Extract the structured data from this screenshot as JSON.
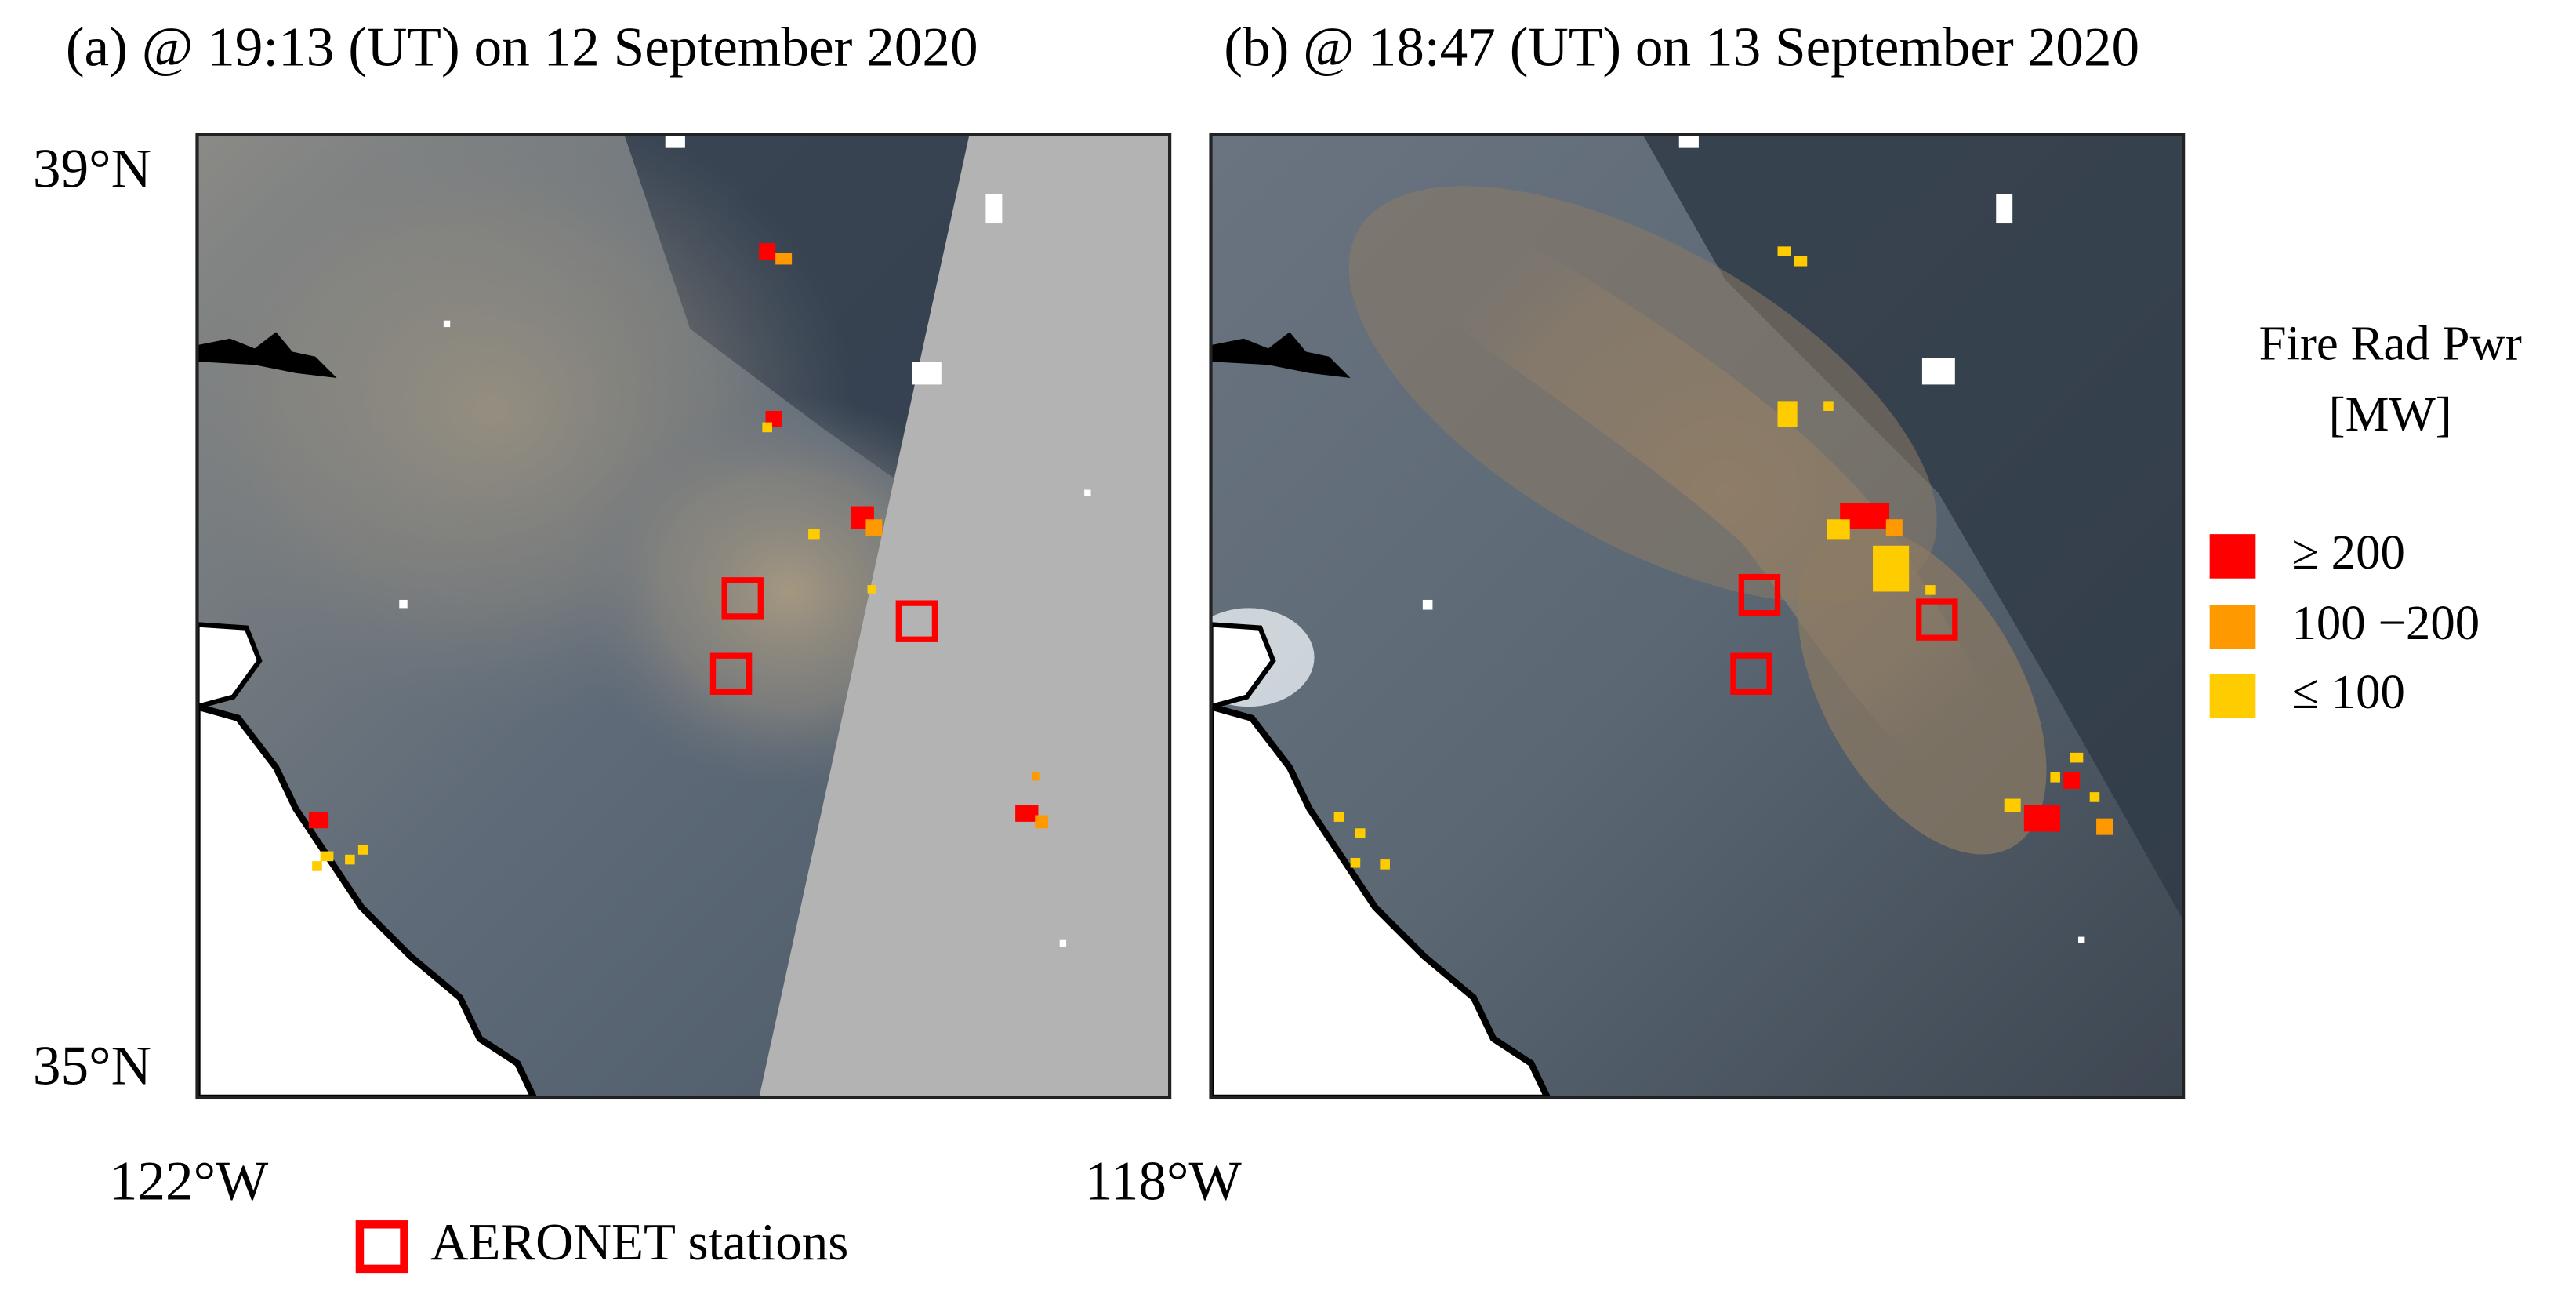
{
  "panels": [
    {
      "title": "(a) @ 19:13 (UT) on 12 September 2020"
    },
    {
      "title": "(b) @ 18:47 (UT) on 13 September 2020"
    }
  ],
  "axes": {
    "lat_labels": [
      "39°N",
      "35°N"
    ],
    "lon_labels": [
      "122°W",
      "118°W"
    ]
  },
  "legend": {
    "fire": {
      "title": "Fire Rad Pwr",
      "unit": "[MW]",
      "items": [
        {
          "label": "≥ 200",
          "color": "#ff0000"
        },
        {
          "label": "100 −200",
          "color": "#ff9900"
        },
        {
          "label": "≤ 100",
          "color": "#ffcc00"
        }
      ]
    },
    "stations": "AERONET stations"
  }
}
